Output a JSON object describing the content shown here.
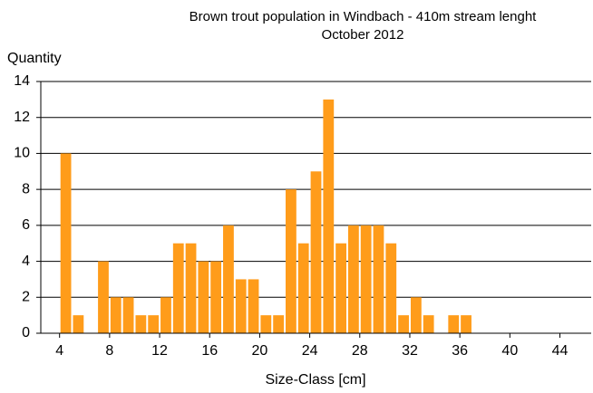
{
  "chart_data": {
    "type": "histogram",
    "title": [
      "Brown trout population in Windbach - 410m stream lenght",
      "October 2012"
    ],
    "y_label": "Quantity",
    "x_label": "Size-Class [cm]",
    "bins": [
      4,
      5,
      6,
      7,
      8,
      9,
      10,
      11,
      12,
      13,
      14,
      15,
      16,
      17,
      18,
      19,
      20,
      21,
      22,
      23,
      24,
      25,
      26,
      27,
      28,
      29,
      30,
      31,
      32,
      33,
      34,
      35,
      36,
      37,
      38,
      39,
      40,
      41,
      42,
      43,
      44,
      45,
      46
    ],
    "values": [
      10,
      1,
      0,
      4,
      2,
      2,
      1,
      1,
      2,
      5,
      5,
      4,
      4,
      6,
      3,
      3,
      1,
      1,
      8,
      5,
      9,
      13,
      5,
      6,
      6,
      6,
      5,
      1,
      2,
      1,
      0,
      1,
      1,
      0,
      0,
      0,
      0,
      0,
      0,
      0,
      0,
      0
    ],
    "color": "#ff9c1a",
    "xlim": [
      2.5,
      46.5
    ],
    "xticks": [
      4,
      8,
      12,
      16,
      20,
      24,
      28,
      32,
      36,
      40,
      44
    ],
    "ylim": [
      0,
      14
    ],
    "yticks": [
      0,
      2,
      4,
      6,
      8,
      10,
      12,
      14
    ],
    "grid": true
  }
}
